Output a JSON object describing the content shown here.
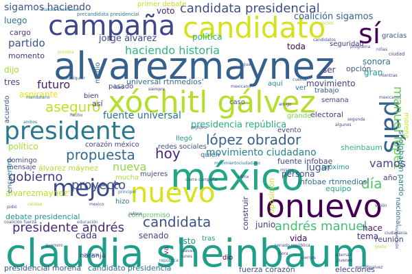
{
  "words": [
    {
      "text": "claudia sheinbaum",
      "color": "#1f9e89"
    },
    {
      "text": "alvarezmaynez",
      "color": "#355f8d"
    },
    {
      "text": "méxico",
      "color": "#22a785"
    },
    {
      "text": "xóchitl gálvez",
      "color": "#b5de2b"
    },
    {
      "text": "lonuevo",
      "color": "#440154"
    },
    {
      "text": "candidato",
      "color": "#d5e21a"
    },
    {
      "text": "presidente",
      "color": "#2a788e"
    },
    {
      "text": "campaña",
      "color": "#404588"
    },
    {
      "text": "país",
      "color": "#33638d"
    },
    {
      "text": "nuevo",
      "color": "#d8e219"
    },
    {
      "text": "mejor",
      "color": "#3e4989"
    },
    {
      "text": "sí",
      "color": "#440154"
    },
    {
      "text": "candidata presidencial",
      "color": "#3e4a89"
    },
    {
      "text": "manuel lópez",
      "color": "#6ece58"
    },
    {
      "text": "andrés manuel",
      "color": "#44bf70"
    },
    {
      "text": "candidata",
      "color": "#3b518b"
    },
    {
      "text": "presidente andrés",
      "color": "#482878"
    },
    {
      "text": "propuesta",
      "color": "#31688e"
    },
    {
      "text": "proyecto",
      "color": "#3b528b"
    },
    {
      "text": "asegurò",
      "color": "#c2df23"
    },
    {
      "text": "aseguró",
      "color": "#c2df23"
    },
    {
      "text": "hoy",
      "color": "#482475"
    },
    {
      "text": "día",
      "color": "#50c46a"
    },
    {
      "text": "gobierno",
      "color": "#443983"
    },
    {
      "text": "vamos",
      "color": "#404688"
    },
    {
      "text": "lópez obrador",
      "color": "#355f8d"
    },
    {
      "text": "movimiento ciudadano",
      "color": "#26828e"
    },
    {
      "text": "futuro",
      "color": "#482173"
    },
    {
      "text": "partido",
      "color": "#3b528b"
    },
    {
      "text": "haciendo historia",
      "color": "#2fb47c"
    },
    {
      "text": "fuente universal",
      "color": "#2c728e"
    },
    {
      "text": "presidencia república",
      "color": "#25ac82"
    },
    {
      "text": "sigamos haciendo",
      "color": "#3a548c"
    },
    {
      "text": "coalición sigamos",
      "color": "#355f8d"
    },
    {
      "text": "infobae rtnmedios'",
      "color": "#31688e"
    },
    {
      "text": "universal rtnmedios'",
      "color": "#30698e"
    },
    {
      "text": "nueva",
      "color": "#8fd744"
    },
    {
      "text": "jorge álvarez",
      "color": "#3f4788"
    },
    {
      "text": "alvarezmaynez'",
      "color": "#b8de29"
    },
    {
      "text": "político",
      "color": "#a8db34"
    },
    {
      "text": "persona",
      "color": "#3e4989"
    },
    {
      "text": "lugar",
      "color": "#3b528b"
    },
    {
      "text": "junio",
      "color": "#453781"
    },
    {
      "text": "senado",
      "color": "#404588"
    },
    {
      "text": "cada",
      "color": "#46327e"
    },
    {
      "text": "listo",
      "color": "#20928c"
    },
    {
      "text": "vida",
      "color": "#440154"
    },
    {
      "text": "tema",
      "color": "#482878"
    },
    {
      "text": "hace",
      "color": "#481467"
    },
    {
      "text": "reunión",
      "color": "#433e85"
    },
    {
      "text": "elecciones",
      "color": "#404688"
    },
    {
      "text": "fuerza corazón",
      "color": "#3b528b"
    },
    {
      "text": "candidato presidencia",
      "color": "#2d708e"
    },
    {
      "text": "presidencial morena",
      "color": "#3a548c"
    },
    {
      "text": "debate presidencial",
      "color": "#1f948c"
    },
    {
      "text": "primer debate",
      "color": "#bddf26"
    },
    {
      "text": "movimiento",
      "color": "#433e85"
    },
    {
      "text": "voto",
      "color": "#482475"
    },
    {
      "text": "política",
      "color": "#2fb47c"
    },
    {
      "text": "toda",
      "color": "#440154"
    },
    {
      "text": "ser",
      "color": "#46327e"
    },
    {
      "text": "opción",
      "color": "#39568c"
    },
    {
      "text": "sonora",
      "color": "#2c728e"
    },
    {
      "text": "gran",
      "color": "#1fa187"
    },
    {
      "text": "oposición",
      "color": "#c2df23"
    },
    {
      "text": "construir",
      "color": "#482878"
    },
    {
      "text": "fuente infobae",
      "color": "#3e4989"
    },
    {
      "text": "infobae rtnmedios'",
      "color": "#31688e"
    },
    {
      "text": "equipo",
      "color": "#22a785"
    },
    {
      "text": "año",
      "color": "#3e4989"
    },
    {
      "text": "próximo",
      "color": "#1f968b"
    },
    {
      "text": "momento",
      "color": "#443983"
    },
    {
      "text": "luego",
      "color": "#2d708e"
    },
    {
      "text": "cargo",
      "color": "#453882"
    },
    {
      "text": "dijo",
      "color": "#a5db36"
    },
    {
      "text": "tres",
      "color": "#3f4788"
    },
    {
      "text": "aspirante",
      "color": "#e5e419"
    },
    {
      "text": "así",
      "color": "#46307e"
    },
    {
      "text": "pasado",
      "color": "#433e85"
    },
    {
      "text": "bien",
      "color": "#453781"
    },
    {
      "text": "caso",
      "color": "#3b528b"
    },
    {
      "text": "aquí",
      "color": "#21918c"
    },
    {
      "text": "trabajo",
      "color": "#3b528b"
    },
    {
      "text": "ver",
      "color": "#2e6f8e"
    },
    {
      "text": "electoral",
      "color": "#424086"
    },
    {
      "text": "evento",
      "color": "#3f4889"
    },
    {
      "text": "grande",
      "color": "#7ad151"
    },
    {
      "text": "llegó",
      "color": "#1e9b8a"
    },
    {
      "text": "redes sociales",
      "color": "#3b528b"
    },
    {
      "text": "corazón méxico",
      "color": "#433e85"
    },
    {
      "text": "domingo",
      "color": "#404588"
    },
    {
      "text": "mensaje",
      "color": "#3d4e8a"
    },
    {
      "text": "álvarez máynez",
      "color": "#b2dd2d"
    },
    {
      "text": "mucha",
      "color": "#addc30"
    },
    {
      "text": "mujeres",
      "color": "#3f4889"
    },
    {
      "text": "quién",
      "color": "#32658e"
    },
    {
      "text": "hizo",
      "color": "#2c738e"
    },
    {
      "text": "compromiso",
      "color": "#5ec962"
    },
    {
      "text": "naranja",
      "color": "#433e85"
    },
    {
      "text": "va",
      "color": "#482878"
    },
    {
      "text": "tras",
      "color": "#1f9a8a"
    },
    {
      "text": "dio",
      "color": "#440154"
    },
    {
      "text": "nacional",
      "color": "#2c728e"
    },
    {
      "text": "morena",
      "color": "#c8e020"
    },
    {
      "text": "sheinbaum pardo",
      "color": "#26828e"
    },
    {
      "text": "sheinbaum",
      "color": "#35b779"
    },
    {
      "text": "encuentro",
      "color": "#2a778e"
    },
    {
      "text": "acuerdo",
      "color": "#3a548c"
    },
    {
      "text": "seguridad",
      "color": "#46337e"
    },
    {
      "text": "semana",
      "color": "#3f4788"
    },
    {
      "text": "gracias",
      "color": "#3a548c"
    },
    {
      "text": "medio",
      "color": "#2e6e8e"
    },
    {
      "text": "primera",
      "color": "#bade28"
    },
    {
      "text": "ciudad",
      "color": "#3b528b"
    },
    {
      "text": "claudia sheinbaum",
      "color": "#2a778e"
    },
    {
      "text": "candidatos",
      "color": "#3e4a89"
    },
    {
      "text": "ciudadanía",
      "color": "#3f4788"
    },
    {
      "text": "calidad",
      "color": "#addc30"
    },
    {
      "text": "mexicanos",
      "color": "#3a548c"
    },
    {
      "text": "mexicano",
      "color": "#3b528b"
    },
    {
      "text": "precandidata presidencial",
      "color": "#2a788e"
    },
    {
      "text": "senado república",
      "color": "#3e4a89"
    },
    {
      "text": "coalición fuerza",
      "color": "#404588"
    },
    {
      "text": "educación",
      "color": "#31688e"
    },
    {
      "text": "principio",
      "color": "#2c728e"
    },
    {
      "text": "jalisco",
      "color": "#453882"
    },
    {
      "text": "cierre campaña",
      "color": "#3e4989"
    },
    {
      "text": "registro",
      "color": "#3a548c"
    },
    {
      "text": "xóchitl",
      "color": "#b8de29"
    },
    {
      "text": "mandatario",
      "color": "#2c728e"
    },
    {
      "text": "cualquier",
      "color": "#3b528b"
    },
    {
      "text": "siempre",
      "color": "#433e85"
    },
    {
      "text": "lunes",
      "color": "#3f4788"
    },
    {
      "text": "jueves",
      "color": "#3e4989"
    },
    {
      "text": "república",
      "color": "#2a788e"
    },
    {
      "text": "viernes",
      "color": "#3f4889"
    },
    {
      "text": "guerrero",
      "color": "#3b528b"
    },
    {
      "text": "hora",
      "color": "#453882"
    },
    {
      "text": "oaxaca",
      "color": "#2c728e"
    },
    {
      "text": "cdmx",
      "color": "#3f4788"
    },
    {
      "text": "jóvenes",
      "color": "#46337e"
    },
    {
      "text": "nuevo león",
      "color": "#3b528b"
    },
    {
      "text": "xochitlgalvez",
      "color": "#3e4989"
    },
    {
      "text": "movimientociudadano",
      "color": "#2a788e"
    },
    {
      "text": "mexico",
      "color": "#404588"
    },
    {
      "text": "agua",
      "color": "#3a548c"
    },
    {
      "text": "programa",
      "color": "#3b528b"
    },
    {
      "text": "visión",
      "color": "#3e4a89"
    },
    {
      "text": "hecho",
      "color": "#3f4788"
    },
    {
      "text": "ambos",
      "color": "#2c728e"
    },
    {
      "text": "mismo",
      "color": "#3b528b"
    },
    {
      "text": "amigo",
      "color": "#433e85"
    },
    {
      "text": "segunda",
      "color": "#3e4989"
    },
    {
      "text": "cuenta",
      "color": "#3b528b"
    },
    {
      "text": "lleva",
      "color": "#3a548c"
    },
    {
      "text": "pidió",
      "color": "#3f4788"
    },
    {
      "text": "gusto",
      "color": "#addc30"
    },
    {
      "text": "niñas",
      "color": "#3b528b"
    },
    {
      "text": "mientras",
      "color": "#3e4989"
    },
    {
      "text": "además",
      "color": "#3b528b"
    },
    {
      "text": "algunos",
      "color": "#3f4788"
    },
    {
      "text": "cuidado",
      "color": "#3a548c"
    }
  ]
}
